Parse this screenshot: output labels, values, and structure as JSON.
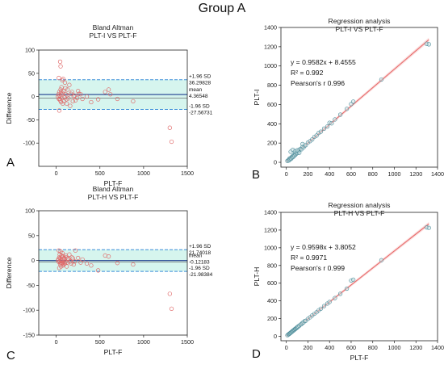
{
  "figure_title": "Group A",
  "panel_letters": [
    "A",
    "B",
    "C",
    "D"
  ],
  "colors": {
    "band": "#d6f5ee",
    "limit_line": "#3b8fd9",
    "mean_line": "#1f3f8f",
    "ba_marker": "#e06a6a",
    "reg_line": "#e86a6a",
    "reg_marker": "#4a8a98"
  },
  "chart_data": [
    {
      "type": "scatter",
      "title": "Bland Altman",
      "subtitle": "PLT-I VS PLT-F",
      "xlabel": "PLT-F",
      "ylabel": "Difference",
      "xlim": [
        -200,
        1500
      ],
      "ylim": [
        -150,
        100
      ],
      "xticks": [
        0,
        500,
        1000,
        1500
      ],
      "yticks": [
        -100,
        -50,
        0,
        50,
        100
      ],
      "mean": 4.36548,
      "upper_loa": 36.29828,
      "lower_loa": -27.56731,
      "labels": {
        "upper_sd": "+1.96 SD",
        "upper_val": "36.29828",
        "mean": "mean",
        "mean_val": "4.36548",
        "lower_sd": "-1.96 SD",
        "lower_val": "-27.56731"
      },
      "points": [
        [
          30,
          40
        ],
        [
          35,
          -30
        ],
        [
          45,
          75
        ],
        [
          50,
          65
        ],
        [
          55,
          10
        ],
        [
          40,
          -5
        ],
        [
          60,
          20
        ],
        [
          70,
          35
        ],
        [
          80,
          38
        ],
        [
          90,
          -10
        ],
        [
          100,
          30
        ],
        [
          110,
          5
        ],
        [
          120,
          -15
        ],
        [
          130,
          15
        ],
        [
          150,
          25
        ],
        [
          160,
          -20
        ],
        [
          180,
          10
        ],
        [
          200,
          0
        ],
        [
          220,
          -8
        ],
        [
          250,
          12
        ],
        [
          280,
          5
        ],
        [
          300,
          -5
        ],
        [
          350,
          0
        ],
        [
          400,
          -12
        ],
        [
          480,
          -6
        ],
        [
          560,
          10
        ],
        [
          600,
          15
        ],
        [
          620,
          5
        ],
        [
          700,
          -5
        ],
        [
          880,
          -10
        ],
        [
          1300,
          -67
        ],
        [
          1320,
          -97
        ],
        [
          20,
          0
        ],
        [
          25,
          5
        ],
        [
          30,
          -5
        ],
        [
          35,
          10
        ],
        [
          40,
          2
        ],
        [
          45,
          -8
        ],
        [
          50,
          15
        ],
        [
          55,
          -12
        ],
        [
          60,
          5
        ],
        [
          65,
          -3
        ],
        [
          70,
          8
        ],
        [
          75,
          -15
        ],
        [
          85,
          12
        ],
        [
          95,
          -2
        ],
        [
          105,
          18
        ],
        [
          115,
          -6
        ],
        [
          125,
          3
        ],
        [
          140,
          -4
        ],
        [
          170,
          6
        ],
        [
          190,
          -10
        ],
        [
          210,
          2
        ],
        [
          240,
          -3
        ],
        [
          260,
          6
        ]
      ]
    },
    {
      "type": "scatter",
      "title": "Regression analysis",
      "subtitle": "PLT-I VS PLT-F",
      "xlabel": "",
      "ylabel": "PLT-I",
      "xlim": [
        -50,
        1400
      ],
      "ylim": [
        -50,
        1400
      ],
      "xticks": [
        0,
        200,
        400,
        600,
        800,
        1000,
        1200,
        1400
      ],
      "yticks": [
        0,
        200,
        400,
        600,
        800,
        1000,
        1200,
        1400
      ],
      "slope": 0.9582,
      "intercept": 8.4555,
      "equation": "y = 0.9582x + 8.4555",
      "r2": "R² = 0.992",
      "pearson": "Pearson's r  0.996",
      "points": [
        [
          10,
          15
        ],
        [
          20,
          25
        ],
        [
          25,
          20
        ],
        [
          30,
          40
        ],
        [
          35,
          30
        ],
        [
          40,
          45
        ],
        [
          45,
          38
        ],
        [
          50,
          55
        ],
        [
          55,
          50
        ],
        [
          60,
          65
        ],
        [
          65,
          58
        ],
        [
          70,
          75
        ],
        [
          75,
          70
        ],
        [
          80,
          90
        ],
        [
          85,
          80
        ],
        [
          90,
          100
        ],
        [
          95,
          92
        ],
        [
          100,
          110
        ],
        [
          105,
          98
        ],
        [
          110,
          120
        ],
        [
          120,
          128
        ],
        [
          130,
          140
        ],
        [
          140,
          135
        ],
        [
          150,
          160
        ],
        [
          160,
          155
        ],
        [
          170,
          175
        ],
        [
          180,
          178
        ],
        [
          200,
          205
        ],
        [
          220,
          220
        ],
        [
          240,
          238
        ],
        [
          260,
          265
        ],
        [
          280,
          278
        ],
        [
          300,
          305
        ],
        [
          320,
          318
        ],
        [
          350,
          350
        ],
        [
          380,
          372
        ],
        [
          400,
          410
        ],
        [
          420,
          405
        ],
        [
          450,
          445
        ],
        [
          500,
          495
        ],
        [
          560,
          555
        ],
        [
          600,
          605
        ],
        [
          620,
          630
        ],
        [
          880,
          860
        ],
        [
          1300,
          1230
        ],
        [
          1320,
          1225
        ],
        [
          40,
          110
        ],
        [
          60,
          130
        ],
        [
          80,
          115
        ],
        [
          100,
          125
        ],
        [
          120,
          100
        ],
        [
          150,
          190
        ]
      ]
    },
    {
      "type": "scatter",
      "title": "Bland Altman",
      "subtitle": "PLT-H VS PLT-F",
      "xlabel": "PLT-F",
      "ylabel": "Difference",
      "xlim": [
        -200,
        1500
      ],
      "ylim": [
        -150,
        100
      ],
      "xticks": [
        0,
        500,
        1000,
        1500
      ],
      "yticks": [
        -150,
        -100,
        -50,
        0,
        50,
        100
      ],
      "mean": -0.12183,
      "upper_loa": 21.74018,
      "lower_loa": -21.98384,
      "labels": {
        "upper_sd": "+1.96 SD",
        "upper_val": "21.74018",
        "mean": "mean",
        "mean_val": "-0.12183",
        "lower_sd": "-1.96 SD",
        "lower_val": "-21.98384"
      },
      "points": [
        [
          30,
          20
        ],
        [
          35,
          -15
        ],
        [
          40,
          12
        ],
        [
          45,
          -8
        ],
        [
          50,
          18
        ],
        [
          55,
          -12
        ],
        [
          60,
          10
        ],
        [
          65,
          -5
        ],
        [
          70,
          15
        ],
        [
          75,
          -10
        ],
        [
          80,
          8
        ],
        [
          85,
          -4
        ],
        [
          90,
          5
        ],
        [
          100,
          -6
        ],
        [
          110,
          10
        ],
        [
          120,
          -12
        ],
        [
          130,
          4
        ],
        [
          150,
          12
        ],
        [
          160,
          -2
        ],
        [
          180,
          6
        ],
        [
          200,
          -8
        ],
        [
          220,
          20
        ],
        [
          250,
          5
        ],
        [
          280,
          -4
        ],
        [
          300,
          2
        ],
        [
          350,
          -6
        ],
        [
          400,
          -10
        ],
        [
          480,
          -20
        ],
        [
          560,
          10
        ],
        [
          600,
          8
        ],
        [
          700,
          -5
        ],
        [
          880,
          -8
        ],
        [
          1300,
          -67
        ],
        [
          1320,
          -97
        ],
        [
          20,
          0
        ],
        [
          25,
          3
        ],
        [
          30,
          -3
        ],
        [
          35,
          6
        ],
        [
          40,
          -2
        ],
        [
          45,
          4
        ],
        [
          50,
          -5
        ],
        [
          55,
          2
        ],
        [
          60,
          -1
        ],
        [
          65,
          7
        ],
        [
          70,
          -6
        ],
        [
          75,
          3
        ],
        [
          85,
          -8
        ],
        [
          95,
          2
        ],
        [
          105,
          -3
        ],
        [
          115,
          6
        ],
        [
          125,
          -4
        ],
        [
          140,
          3
        ],
        [
          170,
          -6
        ],
        [
          190,
          4
        ],
        [
          210,
          -2
        ]
      ]
    },
    {
      "type": "scatter",
      "title": "Regression analysis",
      "subtitle": "PLT-H VS PLT-F",
      "xlabel": "PLT-F",
      "ylabel": "PLT-H",
      "xlim": [
        -50,
        1400
      ],
      "ylim": [
        -50,
        1400
      ],
      "xticks": [
        0,
        200,
        400,
        600,
        800,
        1000,
        1200,
        1400
      ],
      "yticks": [
        0,
        200,
        400,
        600,
        800,
        1000,
        1200,
        1400
      ],
      "slope": 0.9598,
      "intercept": 3.8052,
      "equation": "y = 0.9598x + 3.8052",
      "r2": "R² = 0.9971",
      "pearson": "Pearson's r  0.999",
      "points": [
        [
          10,
          12
        ],
        [
          20,
          22
        ],
        [
          25,
          25
        ],
        [
          30,
          32
        ],
        [
          35,
          34
        ],
        [
          40,
          42
        ],
        [
          45,
          44
        ],
        [
          50,
          52
        ],
        [
          55,
          55
        ],
        [
          60,
          62
        ],
        [
          65,
          64
        ],
        [
          70,
          72
        ],
        [
          75,
          74
        ],
        [
          80,
          82
        ],
        [
          85,
          84
        ],
        [
          90,
          92
        ],
        [
          95,
          94
        ],
        [
          100,
          102
        ],
        [
          105,
          104
        ],
        [
          110,
          112
        ],
        [
          120,
          120
        ],
        [
          130,
          132
        ],
        [
          140,
          138
        ],
        [
          150,
          152
        ],
        [
          160,
          158
        ],
        [
          170,
          172
        ],
        [
          180,
          176
        ],
        [
          200,
          198
        ],
        [
          220,
          215
        ],
        [
          240,
          236
        ],
        [
          260,
          255
        ],
        [
          280,
          272
        ],
        [
          300,
          295
        ],
        [
          320,
          312
        ],
        [
          350,
          342
        ],
        [
          380,
          370
        ],
        [
          400,
          388
        ],
        [
          450,
          432
        ],
        [
          500,
          480
        ],
        [
          560,
          538
        ],
        [
          600,
          630
        ],
        [
          620,
          640
        ],
        [
          880,
          860
        ],
        [
          1300,
          1230
        ],
        [
          1320,
          1225
        ]
      ]
    }
  ]
}
